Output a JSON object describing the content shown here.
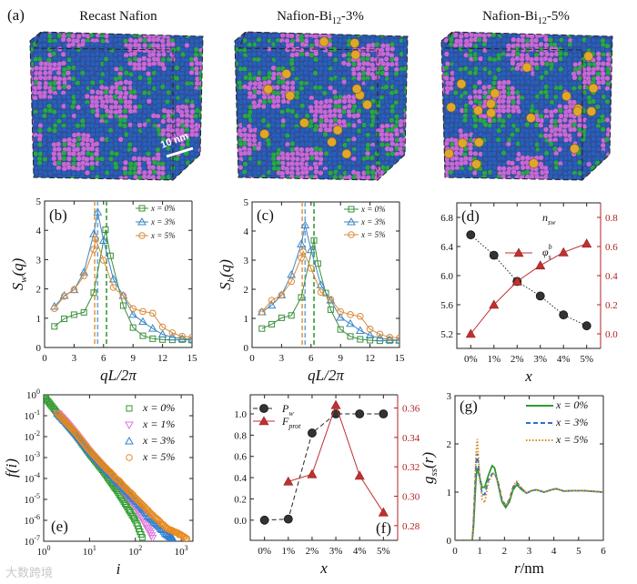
{
  "figure_label": "(a)",
  "structures": [
    {
      "title": "Recast Nafion",
      "title_sub": "",
      "title_rest": "",
      "has_bi": false,
      "scale_bar": "10 nm"
    },
    {
      "title": "Nafion-Bi",
      "title_sub": "12",
      "title_rest": "-3%",
      "has_bi": true
    },
    {
      "title": "Nafion-Bi",
      "title_sub": "12",
      "title_rest": "-5%",
      "has_bi": true
    }
  ],
  "structure_colors": {
    "blue": "#2a5fb8",
    "magenta": "#c76ad6",
    "green": "#27a84a",
    "gold": "#e0a82a"
  },
  "watermark": "大数跨境",
  "chart_data": [
    {
      "id": "b",
      "label": "(b)",
      "type": "line",
      "xlabel": [
        {
          "t": "qL/2π"
        }
      ],
      "ylabel": [
        {
          "t": "S"
        },
        {
          "t": "w",
          "sub": true
        },
        {
          "t": "(q)"
        }
      ],
      "xlim": [
        0,
        15
      ],
      "ylim": [
        0,
        5
      ],
      "xticks": [
        0,
        3,
        6,
        9,
        12,
        15
      ],
      "yticks": [
        0,
        1,
        2,
        3,
        4,
        5
      ],
      "vlines": [
        {
          "x": 5.1,
          "color": "#e39a4a"
        },
        {
          "x": 5.4,
          "color": "#6aa6d8"
        },
        {
          "x": 6.3,
          "color": "#3a9a3a"
        }
      ],
      "series": [
        {
          "name": "x = 0%",
          "color": "#3a8f3a",
          "marker": "square",
          "line": "solid",
          "x": [
            1,
            2,
            3,
            4,
            5,
            6.2,
            6.7,
            8,
            9,
            10,
            11,
            12,
            13,
            14,
            15
          ],
          "y": [
            0.72,
            0.98,
            1.12,
            1.2,
            1.87,
            4.02,
            3.13,
            1.43,
            0.68,
            0.4,
            0.3,
            0.27,
            0.26,
            0.27,
            0.25
          ]
        },
        {
          "name": "x = 3%",
          "color": "#3d86c6",
          "marker": "triangle",
          "line": "solid",
          "x": [
            1,
            2,
            3,
            4,
            5,
            5.4,
            6,
            7,
            8,
            9,
            10,
            11,
            12,
            13,
            14,
            15
          ],
          "y": [
            1.4,
            1.77,
            1.97,
            2.57,
            3.88,
            4.62,
            3.65,
            2.33,
            1.77,
            1.12,
            0.88,
            0.65,
            0.45,
            0.35,
            0.3,
            0.28
          ]
        },
        {
          "name": "x = 5%",
          "color": "#d98a3a",
          "marker": "circle",
          "line": "solid",
          "x": [
            1,
            2,
            3,
            4,
            5,
            5.2,
            6,
            7,
            8,
            9,
            10,
            11,
            12,
            13,
            14,
            15
          ],
          "y": [
            1.33,
            1.75,
            1.97,
            2.45,
            3.35,
            3.7,
            2.98,
            2.05,
            1.77,
            1.33,
            1.23,
            1.17,
            0.7,
            0.5,
            0.38,
            0.35
          ]
        }
      ]
    },
    {
      "id": "c",
      "label": "(c)",
      "type": "line",
      "xlabel": [
        {
          "t": "qL/2π"
        }
      ],
      "ylabel": [
        {
          "t": "S"
        },
        {
          "t": "b",
          "sub": true
        },
        {
          "t": "(q)"
        }
      ],
      "xlim": [
        0,
        15
      ],
      "ylim": [
        0,
        5
      ],
      "xticks": [
        0,
        3,
        6,
        9,
        12,
        15
      ],
      "yticks": [
        0,
        1,
        2,
        3,
        4,
        5
      ],
      "vlines": [
        {
          "x": 5.1,
          "color": "#e39a4a"
        },
        {
          "x": 5.4,
          "color": "#6aa6d8"
        },
        {
          "x": 6.3,
          "color": "#3a9a3a"
        }
      ],
      "series": [
        {
          "name": "x = 0%",
          "color": "#3a8f3a",
          "marker": "square",
          "line": "solid",
          "x": [
            1,
            2,
            3,
            4,
            5,
            6.3,
            6.7,
            7.5,
            8,
            9,
            10,
            11,
            12,
            13,
            14,
            15
          ],
          "y": [
            0.65,
            0.8,
            1.02,
            1.1,
            1.72,
            3.68,
            2.88,
            1.87,
            1.3,
            0.62,
            0.38,
            0.28,
            0.25,
            0.23,
            0.24,
            0.24
          ]
        },
        {
          "name": "x = 3%",
          "color": "#3d86c6",
          "marker": "triangle",
          "line": "solid",
          "x": [
            1,
            2,
            3,
            4,
            5,
            5.4,
            6,
            7,
            8,
            9,
            10,
            11,
            12,
            13,
            14,
            15
          ],
          "y": [
            1.22,
            1.45,
            1.8,
            2.5,
            3.55,
            4.2,
            3.35,
            2.15,
            1.62,
            1.03,
            0.82,
            0.58,
            0.42,
            0.32,
            0.27,
            0.25
          ]
        },
        {
          "name": "x = 5%",
          "color": "#d98a3a",
          "marker": "circle",
          "line": "solid",
          "x": [
            1,
            2,
            3,
            4,
            5,
            5.2,
            6,
            7,
            8,
            9,
            10,
            11,
            12,
            13,
            14,
            15
          ],
          "y": [
            1.22,
            1.62,
            1.8,
            2.27,
            3.08,
            3.3,
            2.72,
            1.9,
            1.65,
            1.23,
            1.13,
            1.07,
            0.63,
            0.46,
            0.35,
            0.33
          ]
        }
      ]
    },
    {
      "id": "d",
      "label": "(d)",
      "type": "line",
      "xlabel": [
        {
          "t": "x"
        }
      ],
      "ylabel": [],
      "xlim": [
        -0.6,
        5.6
      ],
      "ylim": [
        5.0,
        7.0
      ],
      "y2lim": [
        -0.1,
        0.9
      ],
      "y2color": "#b02020",
      "xticks": [
        0,
        1,
        2,
        3,
        4,
        5
      ],
      "xticklabels": [
        "0%",
        "1%",
        "2%",
        "3%",
        "4%",
        "5%"
      ],
      "yticks": [
        5.2,
        5.6,
        6.0,
        6.4,
        6.8
      ],
      "ytickfmt": 1,
      "y2ticks": [
        0.0,
        0.2,
        0.4,
        0.6,
        0.8
      ],
      "y2tickfmt": 1,
      "series": [
        {
          "name": "n",
          "name_sub": "sw",
          "color": "#222222",
          "marker": "filled-circle",
          "line": "dot",
          "axis": "y",
          "x": [
            0,
            1,
            2,
            3,
            4,
            5
          ],
          "y": [
            6.56,
            6.28,
            5.92,
            5.72,
            5.46,
            5.31
          ]
        },
        {
          "name": "φ",
          "name_sub": "s",
          "name_sup": "b",
          "color": "#c03030",
          "marker": "filled-triangle",
          "line": "solid",
          "axis": "y2",
          "x": [
            0,
            1,
            2,
            3,
            4,
            5
          ],
          "y": [
            0.0,
            0.2,
            0.36,
            0.47,
            0.56,
            0.62
          ]
        }
      ]
    },
    {
      "id": "e",
      "label": "(e)",
      "type": "scatter",
      "log": true,
      "xlabel": [
        {
          "t": "i"
        }
      ],
      "ylabel": [
        {
          "t": "f"
        },
        {
          "t": "(i)"
        }
      ],
      "xlim": [
        1,
        1800
      ],
      "ylim": [
        1e-07,
        1
      ],
      "xticks": [
        1,
        10,
        100,
        1000
      ],
      "yticks": [
        1e-07,
        1e-06,
        1e-05,
        0.0001,
        0.001,
        0.01,
        0.1,
        1
      ],
      "series": [
        {
          "name": "x = 0%",
          "color": "#2e9a2e",
          "marker": "square",
          "line": "none",
          "x": [
            1,
            2,
            3,
            5,
            10,
            20,
            50,
            100,
            150
          ],
          "y": [
            0.9,
            0.13,
            0.05,
            0.012,
            0.0015,
            0.00022,
            1.2e-05,
            1e-06,
            1.2e-07
          ]
        },
        {
          "name": "x = 1%",
          "color": "#e070d8",
          "marker": "triangle-down",
          "line": "none",
          "x": [
            2,
            3,
            5,
            10,
            20,
            50,
            100,
            200,
            250
          ],
          "y": [
            0.13,
            0.05,
            0.013,
            0.0018,
            0.00032,
            3.2e-05,
            4.5e-06,
            3e-07,
            1.2e-07
          ]
        },
        {
          "name": "x = 3%",
          "color": "#2f7fd0",
          "marker": "triangle",
          "line": "none",
          "x": [
            2,
            3,
            5,
            10,
            20,
            50,
            100,
            200,
            500,
            700
          ],
          "y": [
            0.13,
            0.05,
            0.014,
            0.002,
            0.00038,
            4.5e-05,
            9e-06,
            1.5e-06,
            2e-07,
            1.2e-07
          ]
        },
        {
          "name": "x = 5%",
          "color": "#e8891f",
          "marker": "circle",
          "line": "none",
          "x": [
            2,
            3,
            5,
            10,
            20,
            50,
            100,
            200,
            500,
            1000,
            1400
          ],
          "y": [
            0.13,
            0.05,
            0.015,
            0.0022,
            0.00042,
            5.5e-05,
            1.2e-05,
            2.5e-06,
            4e-07,
            2e-07,
            1.2e-07
          ]
        }
      ]
    },
    {
      "id": "f",
      "label": "(f)",
      "type": "line",
      "xlabel": [
        {
          "t": "x"
        }
      ],
      "ylabel": [],
      "xlim": [
        -0.6,
        5.6
      ],
      "ylim": [
        -0.19,
        1.18
      ],
      "y2lim": [
        0.27,
        0.369
      ],
      "y2color": "#b02020",
      "xticks": [
        0,
        1,
        2,
        3,
        4,
        5
      ],
      "xticklabels": [
        "0%",
        "1%",
        "2%",
        "3%",
        "4%",
        "5%"
      ],
      "yticks": [
        0.0,
        0.2,
        0.4,
        0.6,
        0.8,
        1.0
      ],
      "ytickfmt": 1,
      "y2ticks": [
        0.28,
        0.3,
        0.32,
        0.34,
        0.36
      ],
      "y2tickfmt": 2,
      "series": [
        {
          "name": "P",
          "name_sub": "w",
          "color": "#222222",
          "marker": "filled-circle",
          "line": "dash",
          "axis": "y",
          "x": [
            0,
            1,
            2,
            3,
            4,
            5
          ],
          "y": [
            0.0,
            0.01,
            0.82,
            1.0,
            1.0,
            1.0
          ]
        },
        {
          "name": "F",
          "name_sub": "prot",
          "color": "#c03030",
          "marker": "filled-triangle",
          "line": "solid",
          "axis": "y2",
          "x": [
            1,
            2,
            3,
            4,
            5
          ],
          "y": [
            0.31,
            0.315,
            0.362,
            0.314,
            0.289
          ]
        }
      ]
    },
    {
      "id": "g",
      "label": "(g)",
      "type": "line",
      "xlabel": [
        {
          "t": "r"
        },
        {
          "t": "/nm",
          "upright": true
        }
      ],
      "ylabel": [
        {
          "t": "g"
        },
        {
          "t": "ss",
          "sub": true
        },
        {
          "t": "(r)"
        }
      ],
      "xlim": [
        0,
        6
      ],
      "ylim": [
        0,
        3
      ],
      "xticks": [
        0,
        1,
        2,
        3,
        4,
        5,
        6
      ],
      "yticks": [
        0,
        1,
        2,
        3
      ],
      "series": [
        {
          "name": "x = 0%",
          "color": "#2e9a2e",
          "marker": "none",
          "line": "solid",
          "x": [
            0,
            0.7,
            0.75,
            0.85,
            0.9,
            1.0,
            1.1,
            1.2,
            1.35,
            1.5,
            1.6,
            1.75,
            1.9,
            2.05,
            2.2,
            2.35,
            2.5,
            2.7,
            2.9,
            3.1,
            3.3,
            3.6,
            3.9,
            4.1,
            4.4,
            4.8,
            5.2,
            6
          ],
          "y": [
            0,
            0,
            0.3,
            1.3,
            1.5,
            1.3,
            1.1,
            1.1,
            1.35,
            1.55,
            1.5,
            1.15,
            0.8,
            0.68,
            0.8,
            1.05,
            1.15,
            1.05,
            0.98,
            1.03,
            1.05,
            1.0,
            1.05,
            1.07,
            1.02,
            1.03,
            1.03,
            1.0
          ]
        },
        {
          "name": "x = 3%",
          "color": "#2f6fc8",
          "marker": "none",
          "line": "dash",
          "x": [
            0,
            0.7,
            0.75,
            0.85,
            0.9,
            1.0,
            1.1,
            1.2,
            1.35,
            1.5,
            1.6,
            1.75,
            1.9,
            2.05,
            2.2,
            2.35,
            2.5,
            2.7,
            2.9,
            3.1,
            3.3,
            3.6,
            3.9,
            4.1,
            4.4,
            4.8,
            5.2,
            6
          ],
          "y": [
            0,
            0,
            0.4,
            1.6,
            1.8,
            1.3,
            0.95,
            0.95,
            1.25,
            1.38,
            1.4,
            1.2,
            0.85,
            0.72,
            0.85,
            1.1,
            1.2,
            1.07,
            0.98,
            1.03,
            1.05,
            1.0,
            1.05,
            1.07,
            1.02,
            1.03,
            1.03,
            1.0
          ]
        },
        {
          "name": "x = 5%",
          "color": "#d98a1f",
          "marker": "none",
          "line": "dot",
          "x": [
            0,
            0.7,
            0.75,
            0.85,
            0.9,
            1.0,
            1.1,
            1.2,
            1.35,
            1.5,
            1.6,
            1.75,
            1.9,
            2.05,
            2.2,
            2.35,
            2.5,
            2.7,
            2.9,
            3.1,
            3.3,
            3.6,
            3.9,
            4.1,
            4.4,
            4.8,
            5.2,
            6
          ],
          "y": [
            0,
            0,
            0.5,
            1.8,
            2.1,
            1.3,
            0.85,
            0.78,
            1.2,
            1.35,
            1.4,
            1.2,
            0.85,
            0.72,
            0.85,
            1.12,
            1.22,
            1.08,
            0.98,
            1.03,
            1.05,
            1.0,
            1.05,
            1.07,
            1.02,
            1.03,
            1.03,
            1.0
          ]
        }
      ]
    }
  ]
}
